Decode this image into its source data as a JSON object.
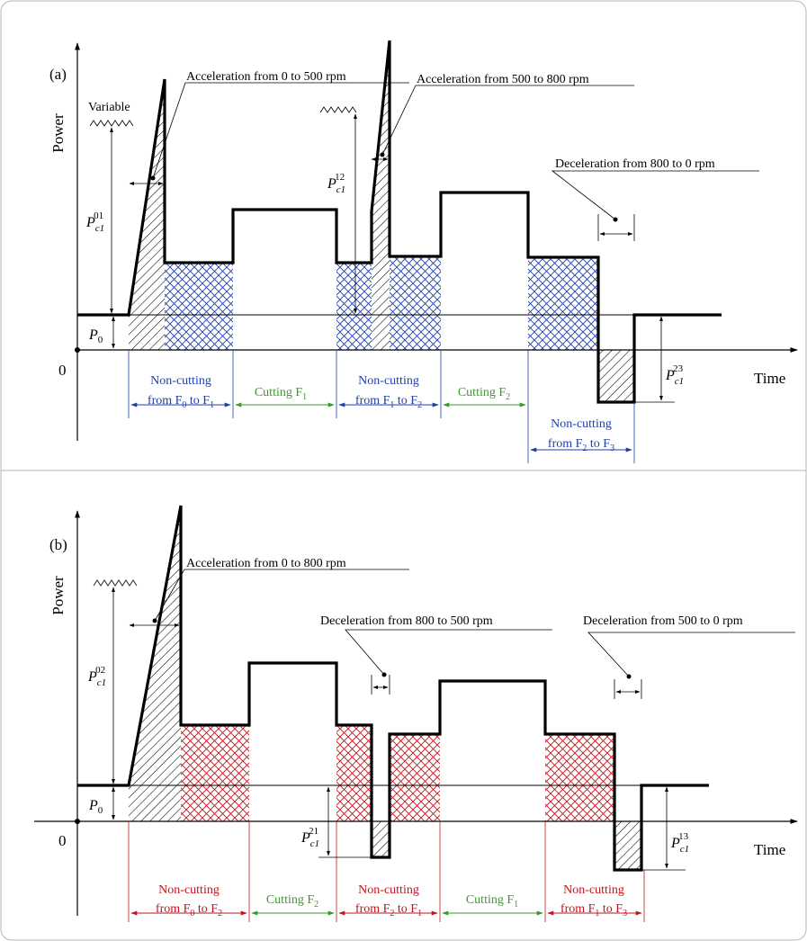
{
  "panel_a": {
    "tag": "(a)",
    "y_axis": "Power",
    "x_axis": "Time",
    "origin": "0",
    "variable_label": "Variable",
    "annotations": {
      "acc1": "Acceleration from 0 to 500 rpm",
      "acc2": "Acceleration from 500 to 800 rpm",
      "dec1": "Deceleration from 800 to 0 rpm"
    },
    "p0": {
      "base": "P",
      "sub": "0"
    },
    "p_c1_01": {
      "base": "P",
      "sub": "c1",
      "sup": "01"
    },
    "p_c1_12": {
      "base": "P",
      "sub": "c1",
      "sup": "12"
    },
    "p_c1_23": {
      "base": "P",
      "sub": "c1",
      "sup": "23"
    },
    "segments": {
      "nc1": {
        "line1": "Non-cutting",
        "line2": "from F",
        "s1": "0",
        "to": " to F",
        "s2": "1"
      },
      "c1": {
        "text": "Cutting F",
        "sub": "1"
      },
      "nc2": {
        "line1": "Non-cutting",
        "line2": "from F",
        "s1": "1",
        "to": " to F",
        "s2": "2"
      },
      "c2": {
        "text": "Cutting F",
        "sub": "2"
      },
      "nc3": {
        "line1": "Non-cutting",
        "line2": "from F",
        "s1": "2",
        "to": " to F",
        "s2": "3"
      }
    }
  },
  "panel_b": {
    "tag": "(b)",
    "y_axis": "Power",
    "x_axis": "Time",
    "origin": "0",
    "annotations": {
      "acc1": "Acceleration from 0 to 800 rpm",
      "dec1": "Deceleration from 800 to 500 rpm",
      "dec2": "Deceleration from 500 to 0 rpm"
    },
    "p0": {
      "base": "P",
      "sub": "0"
    },
    "p_c1_02": {
      "base": "P",
      "sub": "c1",
      "sup": "02"
    },
    "p_c1_21": {
      "base": "P",
      "sub": "c1",
      "sup": "21"
    },
    "p_c1_13": {
      "base": "P",
      "sub": "c1",
      "sup": "13"
    },
    "segments": {
      "nc1": {
        "line1": "Non-cutting",
        "line2": "from F",
        "s1": "0",
        "to": " to F",
        "s2": "2"
      },
      "c1": {
        "text": "Cutting F",
        "sub": "2"
      },
      "nc2": {
        "line1": "Non-cutting",
        "line2": "from F",
        "s1": "2",
        "to": " to F",
        "s2": "1"
      },
      "c2": {
        "text": "Cutting F",
        "sub": "1"
      },
      "nc3": {
        "line1": "Non-cutting",
        "line2": "from F",
        "s1": "1",
        "to": " to F",
        "s2": "3"
      }
    }
  },
  "colors": {
    "blue": "#1f3fa8",
    "red": "#c0161c",
    "green": "#3a9a2a",
    "line": "#000000"
  }
}
